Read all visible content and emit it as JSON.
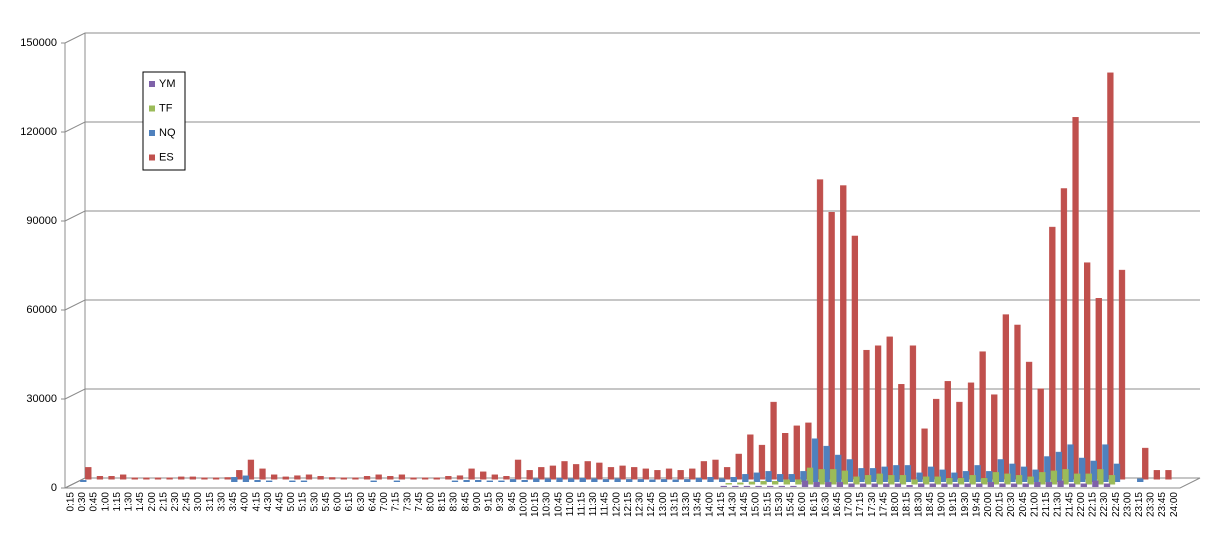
{
  "chart_data": {
    "type": "bar3d",
    "categories": [
      "0:15",
      "0:30",
      "0:45",
      "1:00",
      "1:15",
      "1:30",
      "1:45",
      "2:00",
      "2:15",
      "2:30",
      "2:45",
      "3:00",
      "3:15",
      "3:30",
      "3:45",
      "4:00",
      "4:15",
      "4:30",
      "4:45",
      "5:00",
      "5:15",
      "5:30",
      "5:45",
      "6:00",
      "6:15",
      "6:30",
      "6:45",
      "7:00",
      "7:15",
      "7:30",
      "7:45",
      "8:00",
      "8:15",
      "8:30",
      "8:45",
      "9:00",
      "9:15",
      "9:30",
      "9:45",
      "10:00",
      "10:15",
      "10:30",
      "10:45",
      "11:00",
      "11:15",
      "11:30",
      "11:45",
      "12:00",
      "12:15",
      "12:30",
      "12:45",
      "13:00",
      "13:15",
      "13:30",
      "13:45",
      "14:00",
      "14:15",
      "14:30",
      "14:45",
      "15:00",
      "15:15",
      "15:30",
      "15:45",
      "16:00",
      "16:15",
      "16:30",
      "16:45",
      "17:00",
      "17:15",
      "17:30",
      "17:45",
      "18:00",
      "18:15",
      "18:30",
      "18:45",
      "19:00",
      "19:15",
      "19:30",
      "19:45",
      "20:00",
      "20:15",
      "20:30",
      "20:45",
      "21:00",
      "21:15",
      "21:30",
      "21:45",
      "22:00",
      "22:15",
      "22:30",
      "22:45",
      "23:00",
      "23:15",
      "23:30",
      "23:45",
      "24:00"
    ],
    "series": [
      {
        "name": "YM",
        "color": "#7f62a9",
        "values": [
          0,
          0,
          0,
          0,
          0,
          0,
          0,
          0,
          0,
          0,
          0,
          0,
          0,
          0,
          0,
          0,
          0,
          0,
          0,
          0,
          0,
          0,
          0,
          0,
          0,
          0,
          0,
          0,
          0,
          0,
          0,
          0,
          0,
          0,
          0,
          0,
          0,
          0,
          0,
          0,
          0,
          0,
          0,
          0,
          0,
          0,
          0,
          0,
          0,
          0,
          0,
          0,
          0,
          0,
          0,
          0,
          200,
          200,
          200,
          200,
          200,
          200,
          200,
          2000,
          1500,
          1500,
          1500,
          1000,
          1000,
          1000,
          1000,
          1000,
          500,
          1000,
          1000,
          1000,
          1000,
          1000,
          1000,
          1500,
          1000,
          1000,
          1000,
          1500,
          1500,
          2000,
          1000,
          1000,
          2000,
          1000,
          0,
          0,
          0,
          0,
          0,
          0
        ]
      },
      {
        "name": "TF",
        "color": "#9bbb59",
        "values": [
          0,
          0,
          0,
          0,
          0,
          0,
          0,
          0,
          0,
          0,
          0,
          0,
          0,
          0,
          0,
          0,
          0,
          0,
          0,
          0,
          0,
          0,
          0,
          0,
          0,
          0,
          0,
          0,
          0,
          0,
          0,
          0,
          0,
          0,
          0,
          0,
          0,
          0,
          0,
          0,
          0,
          0,
          0,
          0,
          0,
          0,
          0,
          0,
          0,
          0,
          0,
          0,
          0,
          0,
          0,
          0,
          300,
          500,
          800,
          1000,
          1000,
          1500,
          1500,
          5500,
          5000,
          5000,
          4500,
          2500,
          3000,
          3500,
          3000,
          3000,
          1500,
          2500,
          2500,
          2000,
          2000,
          3000,
          2000,
          4000,
          3500,
          3000,
          2500,
          4000,
          4500,
          5000,
          3500,
          3500,
          5000,
          3000,
          0,
          0,
          0,
          0,
          0,
          0
        ]
      },
      {
        "name": "NQ",
        "color": "#4f81bd",
        "values": [
          500,
          0,
          0,
          0,
          0,
          0,
          0,
          0,
          0,
          0,
          0,
          0,
          0,
          1500,
          2000,
          500,
          300,
          0,
          300,
          300,
          0,
          0,
          0,
          0,
          0,
          300,
          0,
          300,
          0,
          0,
          0,
          0,
          300,
          500,
          500,
          300,
          300,
          800,
          500,
          1000,
          1000,
          1200,
          1000,
          1200,
          1000,
          800,
          1000,
          800,
          800,
          700,
          800,
          700,
          800,
          1200,
          1500,
          1000,
          1500,
          2500,
          3000,
          3500,
          2500,
          2500,
          3500,
          14500,
          12000,
          9000,
          7500,
          4500,
          4500,
          5000,
          5500,
          5500,
          3000,
          5000,
          4000,
          3000,
          3500,
          5500,
          3500,
          7500,
          6000,
          5000,
          4000,
          8500,
          10000,
          12500,
          8000,
          7000,
          12500,
          6000,
          0,
          1000,
          0,
          0,
          0,
          0
        ]
      },
      {
        "name": "ES",
        "color": "#c0504d",
        "values": [
          4000,
          1000,
          1000,
          1500,
          500,
          500,
          500,
          500,
          800,
          800,
          500,
          500,
          600,
          3000,
          6500,
          3500,
          1500,
          800,
          1200,
          1500,
          1000,
          600,
          500,
          500,
          1000,
          1500,
          1000,
          1500,
          500,
          500,
          500,
          1000,
          1200,
          3500,
          2500,
          1500,
          1000,
          6500,
          3000,
          4000,
          4500,
          6000,
          5000,
          6000,
          5500,
          4000,
          4500,
          4000,
          3500,
          3000,
          3500,
          3000,
          3500,
          6000,
          6500,
          4000,
          8500,
          15000,
          11500,
          26000,
          15500,
          18000,
          19000,
          101000,
          90000,
          99000,
          82000,
          43500,
          45000,
          48000,
          32000,
          45000,
          17000,
          27000,
          33000,
          26000,
          32500,
          43000,
          28500,
          55500,
          52000,
          39500,
          30500,
          85000,
          98000,
          122000,
          73000,
          61000,
          137000,
          70500,
          0,
          10500,
          3000,
          3000,
          0,
          0
        ]
      }
    ],
    "ylim": [
      0,
      150000
    ],
    "yticks": [
      0,
      30000,
      60000,
      90000,
      120000,
      150000
    ],
    "grid": true,
    "legend": "upper left"
  }
}
